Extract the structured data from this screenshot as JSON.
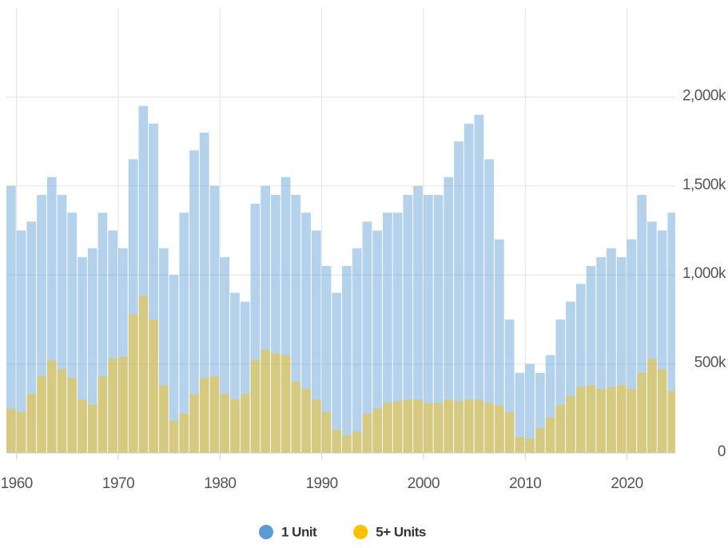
{
  "chart_data": {
    "type": "bar",
    "x": [
      1959,
      1960,
      1961,
      1962,
      1963,
      1964,
      1965,
      1966,
      1967,
      1968,
      1969,
      1970,
      1971,
      1972,
      1973,
      1974,
      1975,
      1976,
      1977,
      1978,
      1979,
      1980,
      1981,
      1982,
      1983,
      1984,
      1985,
      1986,
      1987,
      1988,
      1989,
      1990,
      1991,
      1992,
      1993,
      1994,
      1995,
      1996,
      1997,
      1998,
      1999,
      2000,
      2001,
      2002,
      2003,
      2004,
      2005,
      2006,
      2007,
      2008,
      2009,
      2010,
      2011,
      2012,
      2013,
      2014,
      2015,
      2016,
      2017,
      2018,
      2019,
      2020,
      2021,
      2022,
      2023,
      2024
    ],
    "series": [
      {
        "name": "1 Unit",
        "color": "#5b9bd5",
        "values": [
          1500,
          1250,
          1300,
          1450,
          1550,
          1450,
          1350,
          1100,
          1150,
          1350,
          1250,
          1150,
          1650,
          1950,
          1850,
          1150,
          1000,
          1350,
          1700,
          1800,
          1500,
          1100,
          900,
          850,
          1400,
          1500,
          1450,
          1550,
          1450,
          1350,
          1250,
          1050,
          900,
          1050,
          1150,
          1300,
          1250,
          1350,
          1350,
          1450,
          1500,
          1450,
          1450,
          1550,
          1750,
          1850,
          1900,
          1650,
          1200,
          750,
          450,
          500,
          450,
          550,
          750,
          850,
          950,
          1050,
          1100,
          1150,
          1100,
          1200,
          1450,
          1300,
          1250,
          1350
        ]
      },
      {
        "name": "5+ Units",
        "color": "#ffc000",
        "values": [
          250,
          230,
          330,
          430,
          520,
          470,
          420,
          300,
          270,
          430,
          530,
          540,
          780,
          880,
          750,
          380,
          180,
          220,
          330,
          420,
          430,
          330,
          300,
          330,
          520,
          580,
          560,
          550,
          400,
          360,
          300,
          230,
          130,
          100,
          120,
          220,
          250,
          280,
          290,
          300,
          300,
          280,
          280,
          300,
          290,
          300,
          300,
          280,
          270,
          230,
          90,
          80,
          140,
          200,
          270,
          320,
          370,
          380,
          360,
          370,
          380,
          360,
          450,
          530,
          470,
          350
        ]
      }
    ],
    "xlim": [
      1959,
      2024.75
    ],
    "xticks": [
      1960,
      1970,
      1980,
      1990,
      2000,
      2010,
      2020
    ],
    "ylim": [
      0,
      2500
    ],
    "yticks": [
      0,
      {
        "value": 500,
        "label": "500k"
      },
      {
        "value": 1000,
        "label": "1,000k"
      },
      {
        "value": 1500,
        "label": "1,500k"
      },
      {
        "value": 2000,
        "label": "2,000k"
      }
    ],
    "grid": true
  }
}
